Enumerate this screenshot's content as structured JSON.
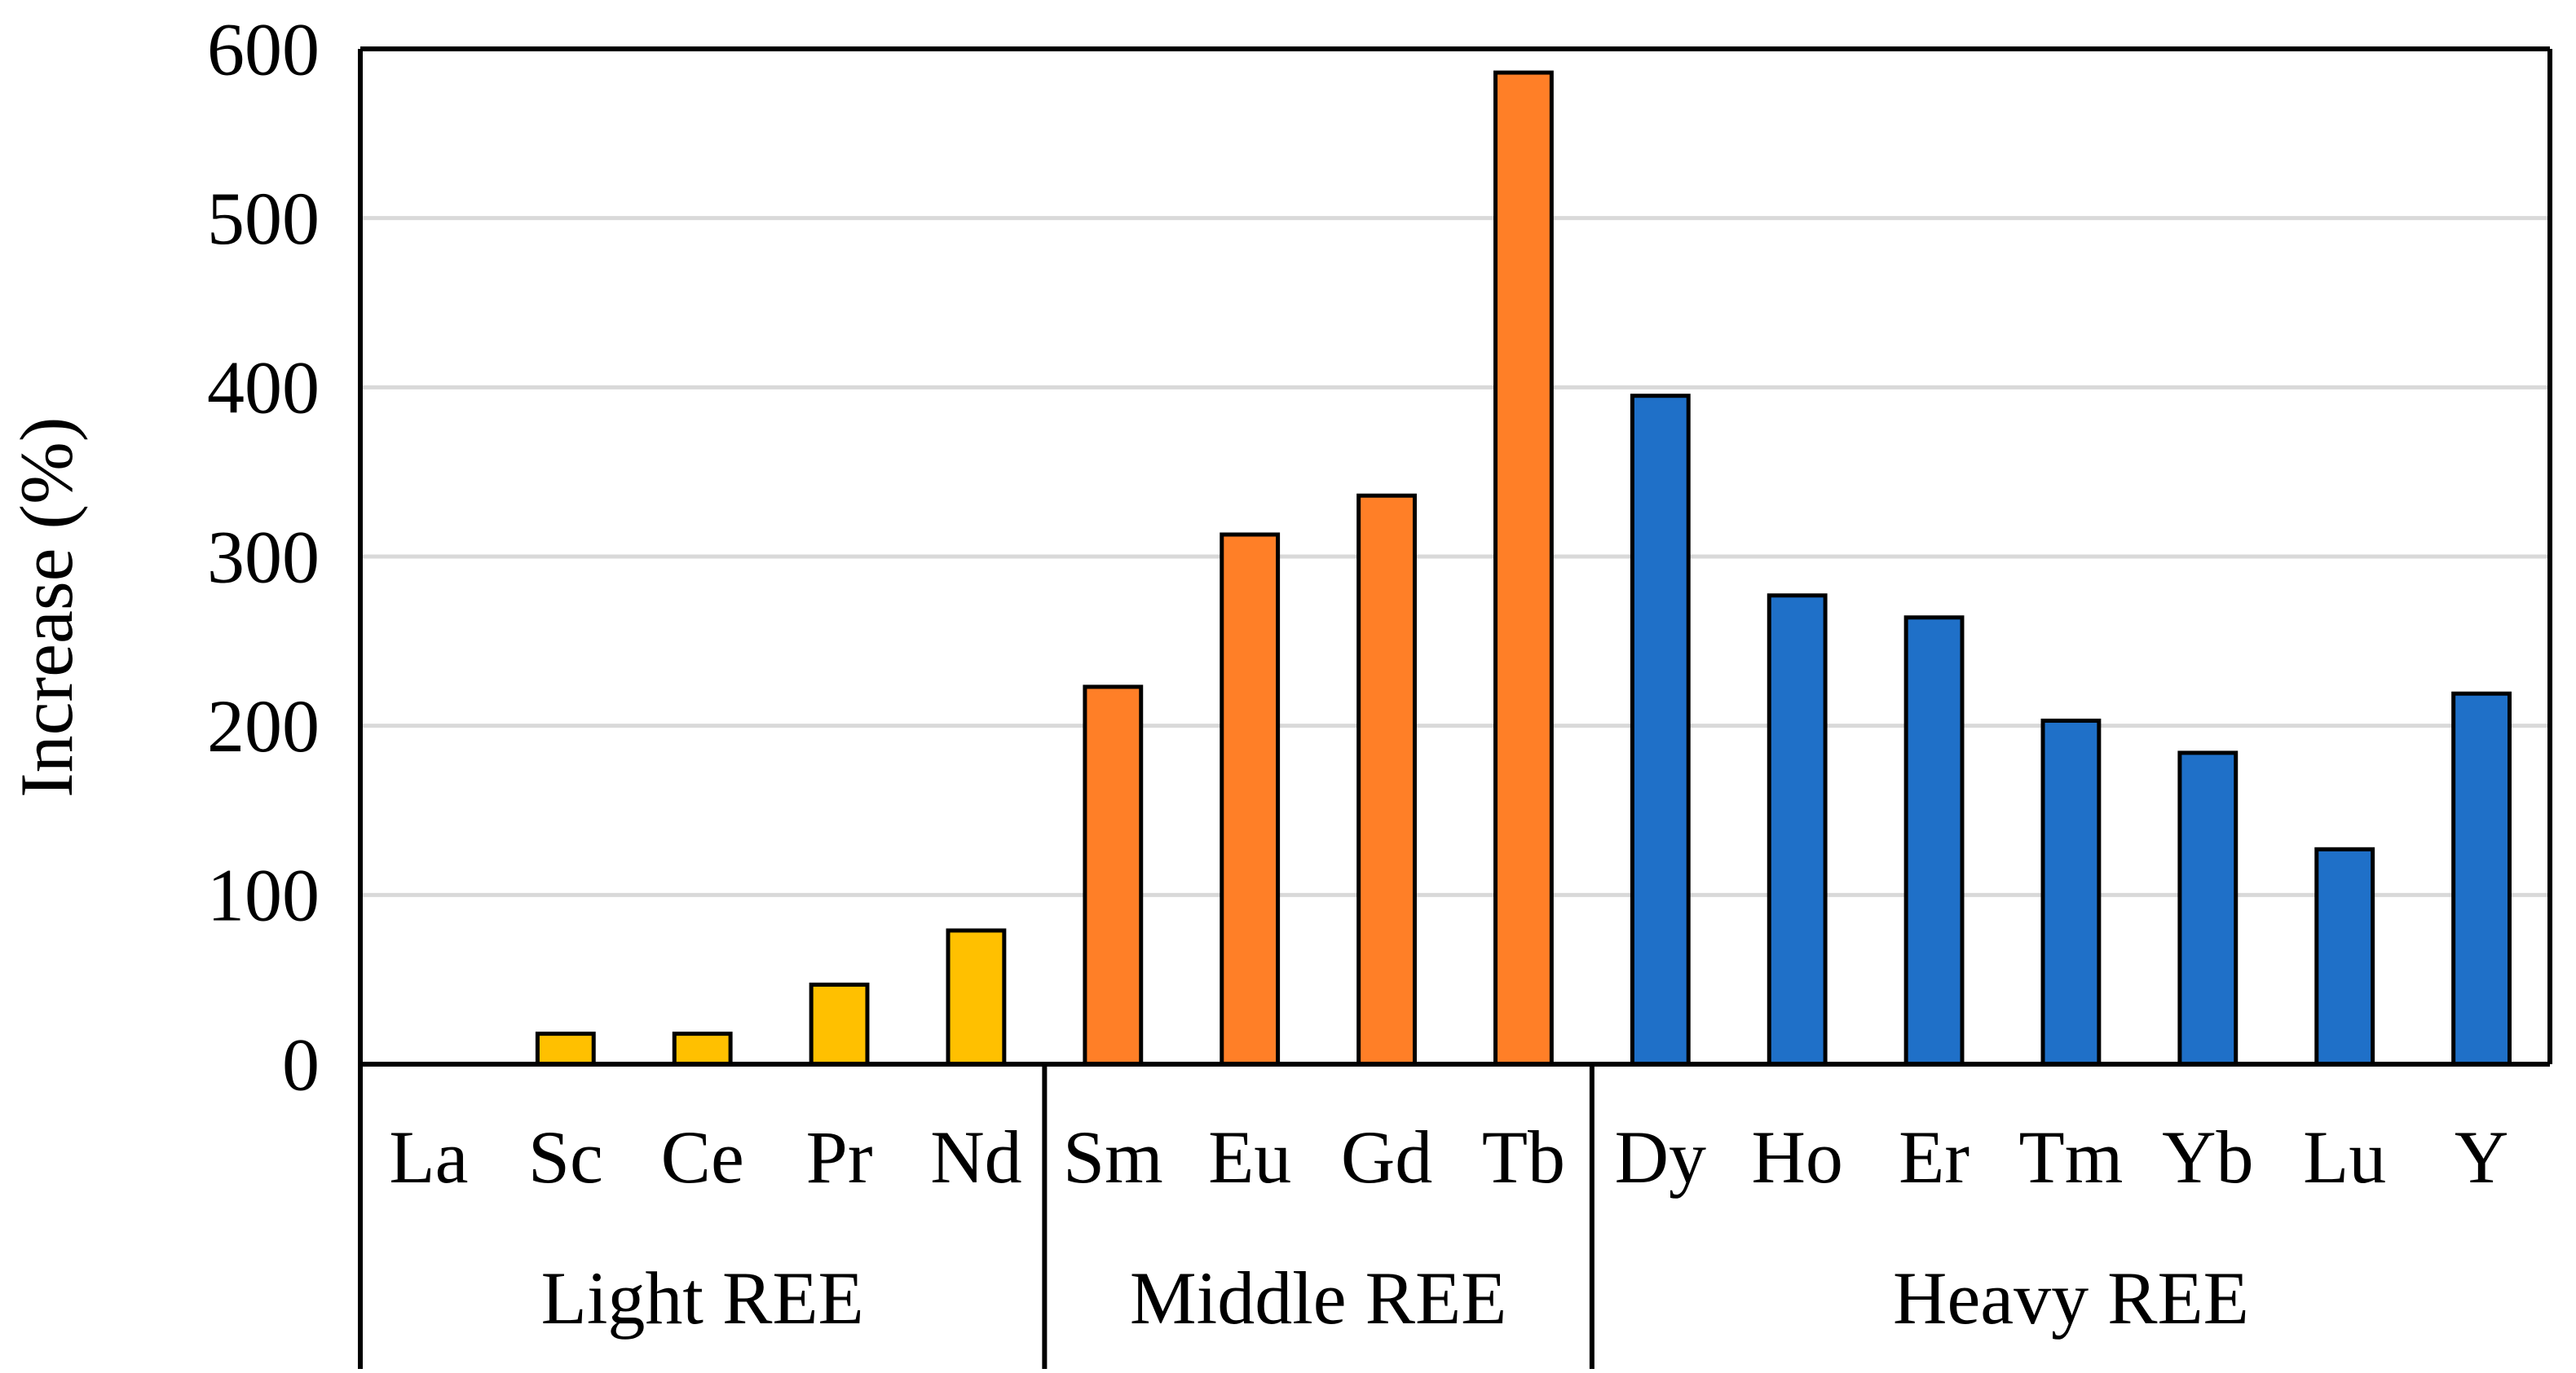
{
  "chart_data": {
    "type": "bar",
    "title": "",
    "xlabel": "",
    "ylabel": "Increase (%)",
    "ylim": [
      0,
      600
    ],
    "yticks": [
      0,
      100,
      200,
      300,
      400,
      500,
      600
    ],
    "grid": true,
    "legend": "none",
    "categories": [
      "La",
      "Sc",
      "Ce",
      "Pr",
      "Nd",
      "Sm",
      "Eu",
      "Gd",
      "Tb",
      "Dy",
      "Ho",
      "Er",
      "Tm",
      "Yb",
      "Lu",
      "Y"
    ],
    "values": [
      0,
      18,
      18,
      47,
      79,
      223,
      313,
      336,
      586,
      395,
      277,
      264,
      203,
      184,
      127,
      219
    ],
    "groups": [
      {
        "name": "Light REE",
        "count": 5,
        "color": "#FFC000"
      },
      {
        "name": "Middle REE",
        "count": 4,
        "color": "#FF7F27"
      },
      {
        "name": "Heavy REE",
        "count": 7,
        "color": "#1F70C8"
      }
    ]
  }
}
